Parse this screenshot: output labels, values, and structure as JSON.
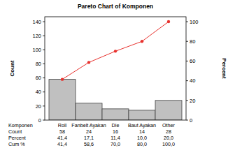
{
  "chart_data": {
    "type": "pareto",
    "title": "Pareto Chart of Komponen",
    "xlabel": "Komponen",
    "ylabel": "Count",
    "y2label": "Percent",
    "categories": [
      "Roll",
      "Fanbelt Ayakan",
      "Die",
      "Baut Ayakan",
      "Other"
    ],
    "series": [
      {
        "name": "Count",
        "type": "bar",
        "color": "#c0c0c0",
        "values": [
          58,
          24,
          16,
          14,
          28
        ]
      },
      {
        "name": "Percent",
        "type": "table",
        "values": [
          41.4,
          17.1,
          11.4,
          10.0,
          20.0
        ],
        "value_labels": [
          "41,4",
          "17,1",
          "11,4",
          "10,0",
          "20,0"
        ]
      },
      {
        "name": "Cum %",
        "type": "line",
        "axis": "y2",
        "color": "#e8322e",
        "marker": "circle",
        "line_style": "solid",
        "values": [
          41.4,
          58.6,
          70.0,
          80.0,
          100.0
        ],
        "value_labels": [
          "41,4",
          "58,6",
          "70,0",
          "80,0",
          "100,0"
        ]
      }
    ],
    "ylim": [
      0,
      147
    ],
    "yticks": [
      0,
      20,
      40,
      60,
      80,
      100,
      120,
      140
    ],
    "y2lim": [
      0,
      105
    ],
    "y2ticks": [
      0,
      20,
      40,
      60,
      80,
      100
    ],
    "grid": false
  }
}
